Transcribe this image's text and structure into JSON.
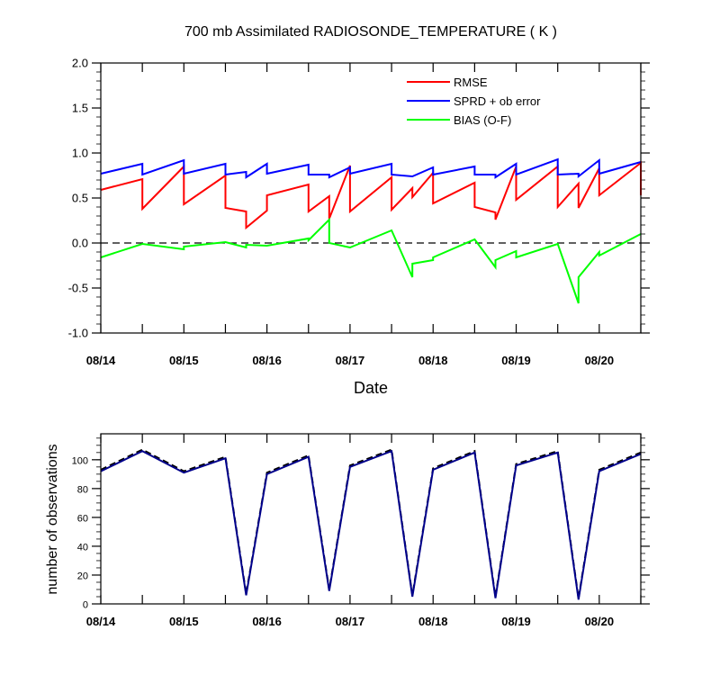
{
  "chart_data": [
    {
      "type": "line",
      "title": "700 mb Assimilated RADIOSONDE_TEMPERATURE ( K )",
      "xlabel": "Date",
      "ylabel": "",
      "ylim": [
        -1.0,
        2.0
      ],
      "xlim": [
        0,
        6.5
      ],
      "yticks": [
        "-1.0",
        "-0.5",
        "0.0",
        "0.5",
        "1.0",
        "1.5",
        "2.0"
      ],
      "ytick_values": [
        -1.0,
        -0.5,
        0.0,
        0.5,
        1.0,
        1.5,
        2.0
      ],
      "xtick_labels": [
        "08/14",
        "08/15",
        "08/16",
        "08/17",
        "08/18",
        "08/19",
        "08/20"
      ],
      "xtick_values": [
        0,
        1,
        2,
        3,
        4,
        5,
        6
      ],
      "zero_line": true,
      "legend": [
        "RMSE",
        "SPRD + ob error",
        "BIAS (O-F)"
      ],
      "series": [
        {
          "name": "RMSE",
          "color": "#ff0000",
          "points": [
            [
              0,
              0.59
            ],
            [
              0.5,
              0.71
            ],
            [
              0.5,
              0.38
            ],
            [
              1,
              0.85
            ],
            [
              1,
              0.43
            ],
            [
              1.5,
              0.75
            ],
            [
              1.5,
              0.39
            ],
            [
              1.75,
              0.35
            ],
            [
              1.75,
              0.17
            ],
            [
              2,
              0.36
            ],
            [
              2,
              0.53
            ],
            [
              2.5,
              0.65
            ],
            [
              2.5,
              0.35
            ],
            [
              2.75,
              0.52
            ],
            [
              2.75,
              0.27
            ],
            [
              3,
              0.86
            ],
            [
              3,
              0.35
            ],
            [
              3.5,
              0.73
            ],
            [
              3.5,
              0.37
            ],
            [
              3.75,
              0.61
            ],
            [
              3.75,
              0.51
            ],
            [
              4,
              0.78
            ],
            [
              4,
              0.44
            ],
            [
              4.5,
              0.67
            ],
            [
              4.5,
              0.4
            ],
            [
              4.75,
              0.34
            ],
            [
              4.75,
              0.26
            ],
            [
              5,
              0.85
            ],
            [
              5,
              0.48
            ],
            [
              5.5,
              0.85
            ],
            [
              5.5,
              0.4
            ],
            [
              5.75,
              0.66
            ],
            [
              5.75,
              0.39
            ],
            [
              6,
              0.83
            ],
            [
              6,
              0.53
            ],
            [
              6.5,
              0.89
            ],
            [
              6.5,
              0.53
            ]
          ]
        },
        {
          "name": "SPRD + ob error",
          "color": "#0000ff",
          "points": [
            [
              0,
              0.77
            ],
            [
              0.5,
              0.88
            ],
            [
              0.5,
              0.76
            ],
            [
              1,
              0.92
            ],
            [
              1,
              0.77
            ],
            [
              1.5,
              0.88
            ],
            [
              1.5,
              0.76
            ],
            [
              1.75,
              0.79
            ],
            [
              1.75,
              0.73
            ],
            [
              2,
              0.88
            ],
            [
              2,
              0.77
            ],
            [
              2.5,
              0.87
            ],
            [
              2.5,
              0.76
            ],
            [
              2.75,
              0.76
            ],
            [
              2.75,
              0.73
            ],
            [
              3,
              0.84
            ],
            [
              3,
              0.77
            ],
            [
              3.5,
              0.88
            ],
            [
              3.5,
              0.76
            ],
            [
              3.75,
              0.74
            ],
            [
              4,
              0.84
            ],
            [
              4,
              0.76
            ],
            [
              4.5,
              0.85
            ],
            [
              4.5,
              0.76
            ],
            [
              4.75,
              0.76
            ],
            [
              4.75,
              0.73
            ],
            [
              5,
              0.88
            ],
            [
              5,
              0.76
            ],
            [
              5.5,
              0.93
            ],
            [
              5.5,
              0.76
            ],
            [
              5.75,
              0.77
            ],
            [
              5.75,
              0.74
            ],
            [
              6,
              0.92
            ],
            [
              6,
              0.77
            ],
            [
              6.5,
              0.9
            ]
          ]
        },
        {
          "name": "BIAS (O-F)",
          "color": "#00ff00",
          "points": [
            [
              0,
              -0.16
            ],
            [
              0.5,
              -0.01
            ],
            [
              1,
              -0.07
            ],
            [
              1,
              -0.04
            ],
            [
              1.5,
              0.01
            ],
            [
              1.75,
              -0.05
            ],
            [
              1.75,
              -0.02
            ],
            [
              2,
              -0.03
            ],
            [
              2.5,
              0.05
            ],
            [
              2.5,
              0.03
            ],
            [
              2.75,
              0.26
            ],
            [
              2.75,
              0.0
            ],
            [
              3,
              -0.05
            ],
            [
              3.5,
              0.14
            ],
            [
              3.75,
              -0.38
            ],
            [
              3.75,
              -0.23
            ],
            [
              4,
              -0.19
            ],
            [
              4,
              -0.16
            ],
            [
              4.5,
              0.04
            ],
            [
              4.75,
              -0.27
            ],
            [
              4.75,
              -0.19
            ],
            [
              5,
              -0.09
            ],
            [
              5,
              -0.16
            ],
            [
              5.5,
              -0.01
            ],
            [
              5.75,
              -0.67
            ],
            [
              5.75,
              -0.38
            ],
            [
              6,
              -0.1
            ],
            [
              6,
              -0.14
            ],
            [
              6.5,
              0.1
            ]
          ]
        }
      ]
    },
    {
      "type": "line",
      "title": "",
      "xlabel": "",
      "ylabel": "number of observations",
      "ylim": [
        0,
        118
      ],
      "xlim": [
        0,
        6.5
      ],
      "yticks": [
        "0",
        "20",
        "40",
        "60",
        "80",
        "100"
      ],
      "ytick_values": [
        0,
        20,
        40,
        60,
        80,
        100
      ],
      "xtick_labels": [
        "08/14",
        "08/15",
        "08/16",
        "08/17",
        "08/18",
        "08/19",
        "08/20"
      ],
      "xtick_values": [
        0,
        1,
        2,
        3,
        4,
        5,
        6
      ],
      "series": [
        {
          "name": "observations (dashed)",
          "color": "#000000",
          "dashed": true,
          "points": [
            [
              0,
              93
            ],
            [
              0.5,
              107
            ],
            [
              1,
              92
            ],
            [
              1.5,
              102
            ],
            [
              1.75,
              7
            ],
            [
              2,
              91
            ],
            [
              2.5,
              103
            ],
            [
              2.75,
              10
            ],
            [
              3,
              96
            ],
            [
              3.5,
              107
            ],
            [
              3.75,
              6
            ],
            [
              4,
              94
            ],
            [
              4.5,
              106
            ],
            [
              4.75,
              5
            ],
            [
              5,
              97
            ],
            [
              5.5,
              106
            ],
            [
              5.75,
              4
            ],
            [
              6,
              93
            ],
            [
              6.5,
              105
            ]
          ]
        },
        {
          "name": "observations (solid)",
          "color": "#00008b",
          "dashed": false,
          "points": [
            [
              0,
              92
            ],
            [
              0.5,
              106
            ],
            [
              1,
              91
            ],
            [
              1.5,
              101
            ],
            [
              1.75,
              6
            ],
            [
              2,
              90
            ],
            [
              2.5,
              102
            ],
            [
              2.75,
              9
            ],
            [
              3,
              95
            ],
            [
              3.5,
              106
            ],
            [
              3.75,
              5
            ],
            [
              4,
              93
            ],
            [
              4.5,
              105
            ],
            [
              4.75,
              4
            ],
            [
              5,
              96
            ],
            [
              5.5,
              105
            ],
            [
              5.75,
              3
            ],
            [
              6,
              92
            ],
            [
              6.5,
              104
            ]
          ]
        }
      ]
    }
  ]
}
